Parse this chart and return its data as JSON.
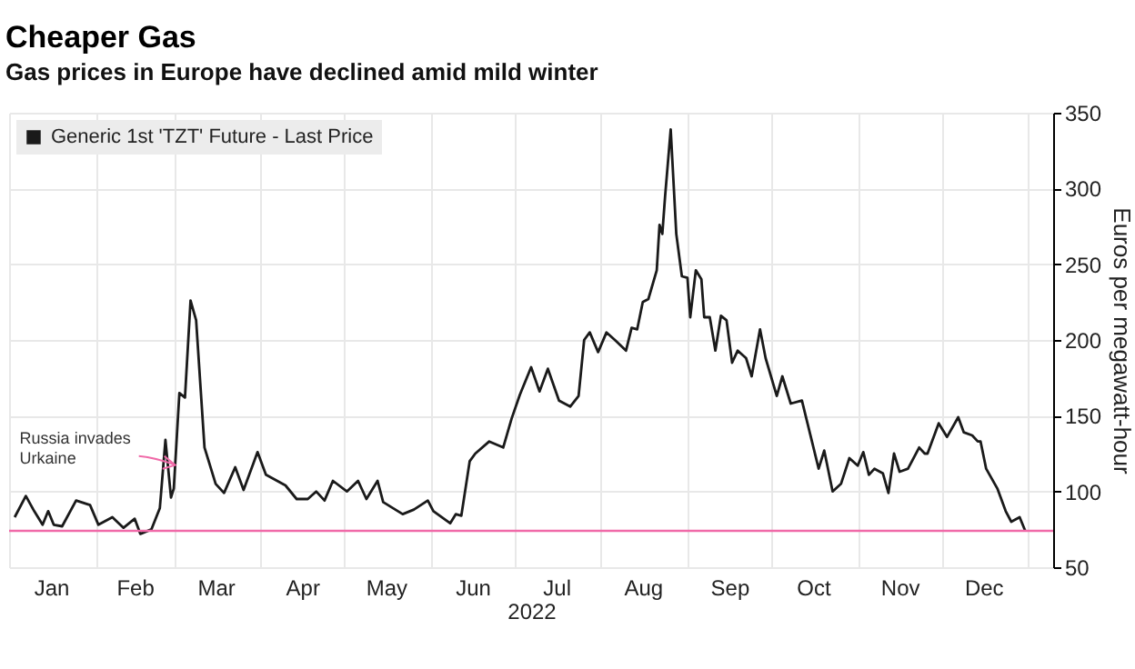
{
  "chart_data": {
    "type": "line",
    "title": "Cheaper Gas",
    "subtitle": "Gas prices in Europe have declined amid mild winter",
    "xlabel": "2022",
    "ylabel": "Euros per megawatt-hour",
    "legend": "top left",
    "grid": true,
    "xlim": [
      "2022-01-01",
      "2023-01-10"
    ],
    "xticks": [
      {
        "value": "2022-01-01",
        "label": null
      },
      {
        "value": "2022-02-01",
        "label": null
      },
      {
        "value": "2022-03-01",
        "label": null
      },
      {
        "value": "2022-04-01",
        "label": null
      },
      {
        "value": "2022-05-01",
        "label": null
      },
      {
        "value": "2022-06-01",
        "label": null
      },
      {
        "value": "2022-07-01",
        "label": null
      },
      {
        "value": "2022-08-01",
        "label": null
      },
      {
        "value": "2022-09-01",
        "label": null
      },
      {
        "value": "2022-10-01",
        "label": null
      },
      {
        "value": "2022-11-01",
        "label": null
      },
      {
        "value": "2022-12-01",
        "label": null
      },
      {
        "value": "2023-01-01",
        "label": null
      },
      {
        "value": "2022-01-16",
        "label": "Jan"
      },
      {
        "value": "2022-02-15",
        "label": "Feb"
      },
      {
        "value": "2022-03-16",
        "label": "Mar"
      },
      {
        "value": "2022-04-16",
        "label": "Apr"
      },
      {
        "value": "2022-05-16",
        "label": "May"
      },
      {
        "value": "2022-06-16",
        "label": "Jun"
      },
      {
        "value": "2022-07-16",
        "label": "Jul"
      },
      {
        "value": "2022-08-16",
        "label": "Aug"
      },
      {
        "value": "2022-09-16",
        "label": "Sep"
      },
      {
        "value": "2022-10-16",
        "label": "Oct"
      },
      {
        "value": "2022-11-16",
        "label": "Nov"
      },
      {
        "value": "2022-12-16",
        "label": "Dec"
      }
    ],
    "ylim": [
      50,
      350
    ],
    "yticks": [
      50,
      100,
      150,
      200,
      250,
      300,
      350
    ],
    "ref_lines": [
      {
        "axis": "y",
        "value": 74,
        "color": "#f06aa8"
      }
    ],
    "annotations": [
      {
        "text": "Russia invades\nUrkaine",
        "x": "2022-02-22",
        "y": 127
      }
    ],
    "series": [
      {
        "name": "Generic 1st 'TZT' Future - Last Price",
        "color": "#1a1a1a",
        "x": [
          "2022-01-03",
          "2022-01-07",
          "2022-01-10",
          "2022-01-13",
          "2022-01-15",
          "2022-01-17",
          "2022-01-20",
          "2022-01-25",
          "2022-01-30",
          "2022-02-02",
          "2022-02-07",
          "2022-02-11",
          "2022-02-15",
          "2022-02-17",
          "2022-02-21",
          "2022-02-24",
          "2022-02-26",
          "2022-02-28",
          "2022-03-01",
          "2022-03-03",
          "2022-03-05",
          "2022-03-07",
          "2022-03-09",
          "2022-03-12",
          "2022-03-14",
          "2022-03-16",
          "2022-03-19",
          "2022-03-23",
          "2022-03-26",
          "2022-03-31",
          "2022-04-03",
          "2022-04-10",
          "2022-04-14",
          "2022-04-18",
          "2022-04-21",
          "2022-04-24",
          "2022-04-27",
          "2022-05-02",
          "2022-05-06",
          "2022-05-09",
          "2022-05-13",
          "2022-05-15",
          "2022-05-22",
          "2022-05-26",
          "2022-05-31",
          "2022-06-02",
          "2022-06-08",
          "2022-06-10",
          "2022-06-12",
          "2022-06-15",
          "2022-06-17",
          "2022-06-22",
          "2022-06-27",
          "2022-06-30",
          "2022-07-03",
          "2022-07-07",
          "2022-07-10",
          "2022-07-13",
          "2022-07-17",
          "2022-07-21",
          "2022-07-24",
          "2022-07-26",
          "2022-07-28",
          "2022-07-31",
          "2022-08-03",
          "2022-08-06",
          "2022-08-10",
          "2022-08-12",
          "2022-08-14",
          "2022-08-16",
          "2022-08-18",
          "2022-08-21",
          "2022-08-22",
          "2022-08-23",
          "2022-08-24",
          "2022-08-26",
          "2022-08-28",
          "2022-08-30",
          "2022-09-01",
          "2022-09-02",
          "2022-09-04",
          "2022-09-06",
          "2022-09-07",
          "2022-09-09",
          "2022-09-11",
          "2022-09-13",
          "2022-09-15",
          "2022-09-17",
          "2022-09-19",
          "2022-09-22",
          "2022-09-24",
          "2022-09-27",
          "2022-09-29",
          "2022-10-03",
          "2022-10-05",
          "2022-10-08",
          "2022-10-12",
          "2022-10-14",
          "2022-10-18",
          "2022-10-20",
          "2022-10-23",
          "2022-10-26",
          "2022-10-29",
          "2022-11-01",
          "2022-11-03",
          "2022-11-05",
          "2022-11-07",
          "2022-11-10",
          "2022-11-12",
          "2022-11-14",
          "2022-11-16",
          "2022-11-19",
          "2022-11-23",
          "2022-11-25",
          "2022-11-26",
          "2022-11-30",
          "2022-12-03",
          "2022-12-07",
          "2022-12-09",
          "2022-12-12",
          "2022-12-14",
          "2022-12-15",
          "2022-12-17",
          "2022-12-21",
          "2022-12-24",
          "2022-12-26",
          "2022-12-29",
          "2022-12-31"
        ],
        "values": [
          83,
          97,
          87,
          78,
          87,
          78,
          77,
          94,
          91,
          78,
          83,
          76,
          82,
          72,
          75,
          89,
          134,
          96,
          102,
          165,
          162,
          226,
          213,
          129,
          117,
          105,
          99,
          116,
          101,
          126,
          111,
          104,
          95,
          95,
          100,
          94,
          107,
          100,
          107,
          95,
          107,
          93,
          85,
          88,
          94,
          87,
          79,
          85,
          84,
          120,
          125,
          133,
          129,
          148,
          164,
          182,
          166,
          181,
          160,
          156,
          163,
          200,
          205,
          192,
          205,
          200,
          193,
          208,
          207,
          225,
          227,
          246,
          276,
          270,
          295,
          339,
          270,
          242,
          241,
          215,
          246,
          240,
          215,
          215,
          193,
          216,
          213,
          185,
          193,
          188,
          176,
          207,
          188,
          163,
          176,
          158,
          160,
          145,
          115,
          127,
          100,
          105,
          122,
          117,
          126,
          111,
          115,
          112,
          99,
          125,
          113,
          115,
          129,
          125,
          125,
          145,
          136,
          149,
          139,
          137,
          133,
          133,
          115,
          102,
          87,
          80,
          83,
          74
        ]
      }
    ]
  }
}
